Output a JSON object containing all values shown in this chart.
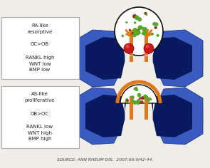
{
  "background_color": "#f0ede8",
  "panel1_label_lines": [
    "RA-like",
    "resorptive",
    "",
    "OC>OB",
    "",
    "RANKL high",
    "WNT low",
    "BMP low"
  ],
  "panel2_label_lines": [
    "AS-like",
    "proliferative",
    "",
    "OB>OC",
    "",
    "RANKL low",
    "WNT high",
    "BMP high"
  ],
  "source_text": "SOURCE: ANN RHEUM DIS.  2007;66:III42-44.",
  "color_bone_gray": "#b8b0a0",
  "color_blue_dark": "#1a3580",
  "color_blue_mid": "#3a5cc0",
  "color_blue_light": "#6080d8",
  "color_orange": "#e07818",
  "color_white": "#ffffff",
  "color_green_dot": "#58a828",
  "color_red_dot": "#cc1818",
  "color_black": "#111111",
  "color_dark_blue_inner": "#0a1a60"
}
